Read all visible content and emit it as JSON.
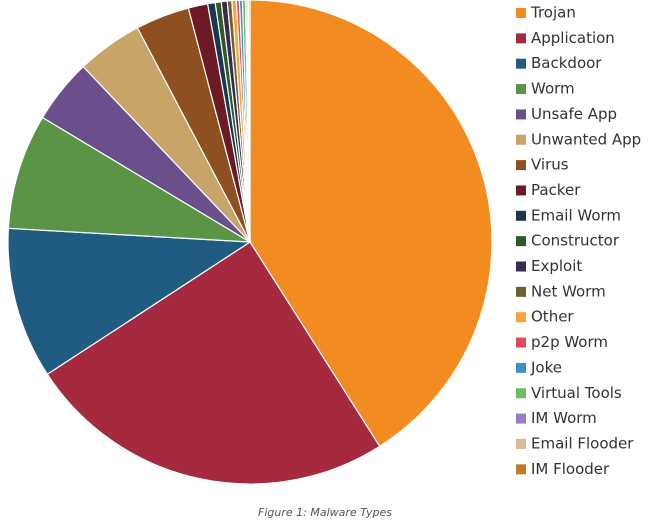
{
  "chart_data": {
    "type": "pie",
    "title": "Figure 1: Malware Types",
    "categories": [
      "Trojan",
      "Application",
      "Backdoor",
      "Worm",
      "Unsafe App",
      "Unwanted App",
      "Virus",
      "Packer",
      "Email Worm",
      "Constructor",
      "Exploit",
      "Net Worm",
      "Other",
      "p2p Worm",
      "Joke",
      "Virtual Tools",
      "IM Worm",
      "Email Flooder",
      "IM Flooder"
    ],
    "values": [
      41.0,
      24.8,
      10.1,
      7.7,
      4.3,
      4.4,
      3.6,
      1.3,
      0.5,
      0.4,
      0.4,
      0.3,
      0.3,
      0.2,
      0.2,
      0.2,
      0.1,
      0.1,
      0.1
    ],
    "colors": [
      "#f28b20",
      "#a52a3f",
      "#205b82",
      "#5a9447",
      "#6b4f8c",
      "#c9a468",
      "#8e5020",
      "#6b1a26",
      "#17384f",
      "#2e5a2a",
      "#3b2a4f",
      "#6b6030",
      "#f7a43c",
      "#e04a5c",
      "#3d8fc4",
      "#6dbd5c",
      "#9a7bc4",
      "#d8bd92",
      "#c57a2a"
    ]
  }
}
